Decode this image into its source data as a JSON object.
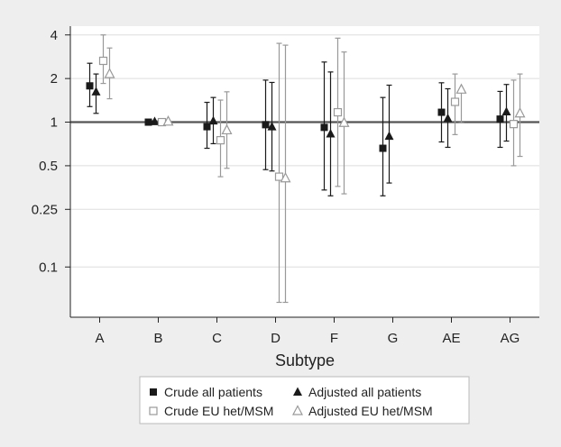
{
  "chart_data": {
    "type": "scatter",
    "title": "",
    "xlabel": "Subtype",
    "ylabel": "",
    "y_scale": "log",
    "ylim": [
      0.045,
      4.6
    ],
    "y_ticks": [
      {
        "value": 4,
        "label": "4"
      },
      {
        "value": 2,
        "label": "2"
      },
      {
        "value": 1,
        "label": "1"
      },
      {
        "value": 0.5,
        "label": "0.5"
      },
      {
        "value": 0.25,
        "label": "0.25"
      },
      {
        "value": 0.1,
        "label": "0.1"
      }
    ],
    "reference_line": 1,
    "grid": "horizontal",
    "categories": [
      "A",
      "B",
      "C",
      "D",
      "F",
      "G",
      "AE",
      "AG"
    ],
    "series": [
      {
        "name": "Crude all patients",
        "marker": "filled-square",
        "color": "#1a1a1a",
        "points": [
          {
            "x": "A",
            "y": 1.78,
            "lo": 1.28,
            "hi": 2.55
          },
          {
            "x": "B",
            "y": 1.0,
            "lo": 1.0,
            "hi": 1.0
          },
          {
            "x": "C",
            "y": 0.93,
            "lo": 0.66,
            "hi": 1.37
          },
          {
            "x": "D",
            "y": 0.96,
            "lo": 0.47,
            "hi": 1.95
          },
          {
            "x": "F",
            "y": 0.92,
            "lo": 0.34,
            "hi": 2.6
          },
          {
            "x": "G",
            "y": 0.66,
            "lo": 0.31,
            "hi": 1.48
          },
          {
            "x": "AE",
            "y": 1.17,
            "lo": 0.73,
            "hi": 1.87
          },
          {
            "x": "AG",
            "y": 1.05,
            "lo": 0.67,
            "hi": 1.63
          }
        ]
      },
      {
        "name": "Adjusted all patients",
        "marker": "filled-triangle",
        "color": "#1a1a1a",
        "points": [
          {
            "x": "A",
            "y": 1.62,
            "lo": 1.15,
            "hi": 2.15
          },
          {
            "x": "B",
            "y": 1.01,
            "lo": 1.0,
            "hi": 1.02
          },
          {
            "x": "C",
            "y": 1.02,
            "lo": 0.71,
            "hi": 1.48
          },
          {
            "x": "D",
            "y": 0.93,
            "lo": 0.46,
            "hi": 1.88
          },
          {
            "x": "F",
            "y": 0.83,
            "lo": 0.31,
            "hi": 2.22
          },
          {
            "x": "G",
            "y": 0.8,
            "lo": 0.38,
            "hi": 1.8
          },
          {
            "x": "AE",
            "y": 1.06,
            "lo": 0.67,
            "hi": 1.7
          },
          {
            "x": "AG",
            "y": 1.18,
            "lo": 0.74,
            "hi": 1.82
          }
        ]
      },
      {
        "name": "Crude EU het/MSM",
        "marker": "hollow-square",
        "color": "#999999",
        "points": [
          {
            "x": "A",
            "y": 2.65,
            "lo": 1.85,
            "hi": 4.0
          },
          {
            "x": "B",
            "y": 1.0,
            "lo": 1.0,
            "hi": 1.0
          },
          {
            "x": "C",
            "y": 0.75,
            "lo": 0.42,
            "hi": 1.42
          },
          {
            "x": "D",
            "y": 0.42,
            "lo": 0.057,
            "hi": 3.5
          },
          {
            "x": "F",
            "y": 1.17,
            "lo": 0.36,
            "hi": 3.8
          },
          {
            "x": "AE",
            "y": 1.38,
            "lo": 0.82,
            "hi": 2.15
          },
          {
            "x": "AG",
            "y": 0.97,
            "lo": 0.5,
            "hi": 1.95
          }
        ]
      },
      {
        "name": "Adjusted EU het/MSM",
        "marker": "hollow-triangle",
        "color": "#999999",
        "points": [
          {
            "x": "A",
            "y": 2.15,
            "lo": 1.45,
            "hi": 3.25
          },
          {
            "x": "B",
            "y": 1.01,
            "lo": 1.0,
            "hi": 1.02
          },
          {
            "x": "C",
            "y": 0.88,
            "lo": 0.48,
            "hi": 1.62
          },
          {
            "x": "D",
            "y": 0.41,
            "lo": 0.057,
            "hi": 3.4
          },
          {
            "x": "F",
            "y": 0.99,
            "lo": 0.32,
            "hi": 3.05
          },
          {
            "x": "AE",
            "y": 1.68,
            "lo": 0.99,
            "hi": 1.68
          },
          {
            "x": "AG",
            "y": 1.15,
            "lo": 0.58,
            "hi": 2.15
          }
        ]
      }
    ],
    "legend": {
      "placement": "bottom",
      "items": [
        {
          "label": "Crude all patients",
          "marker": "filled-square"
        },
        {
          "label": "Adjusted all patients",
          "marker": "filled-triangle"
        },
        {
          "label": "Crude EU het/MSM",
          "marker": "hollow-square"
        },
        {
          "label": "Adjusted EU het/MSM",
          "marker": "hollow-triangle"
        }
      ]
    }
  }
}
